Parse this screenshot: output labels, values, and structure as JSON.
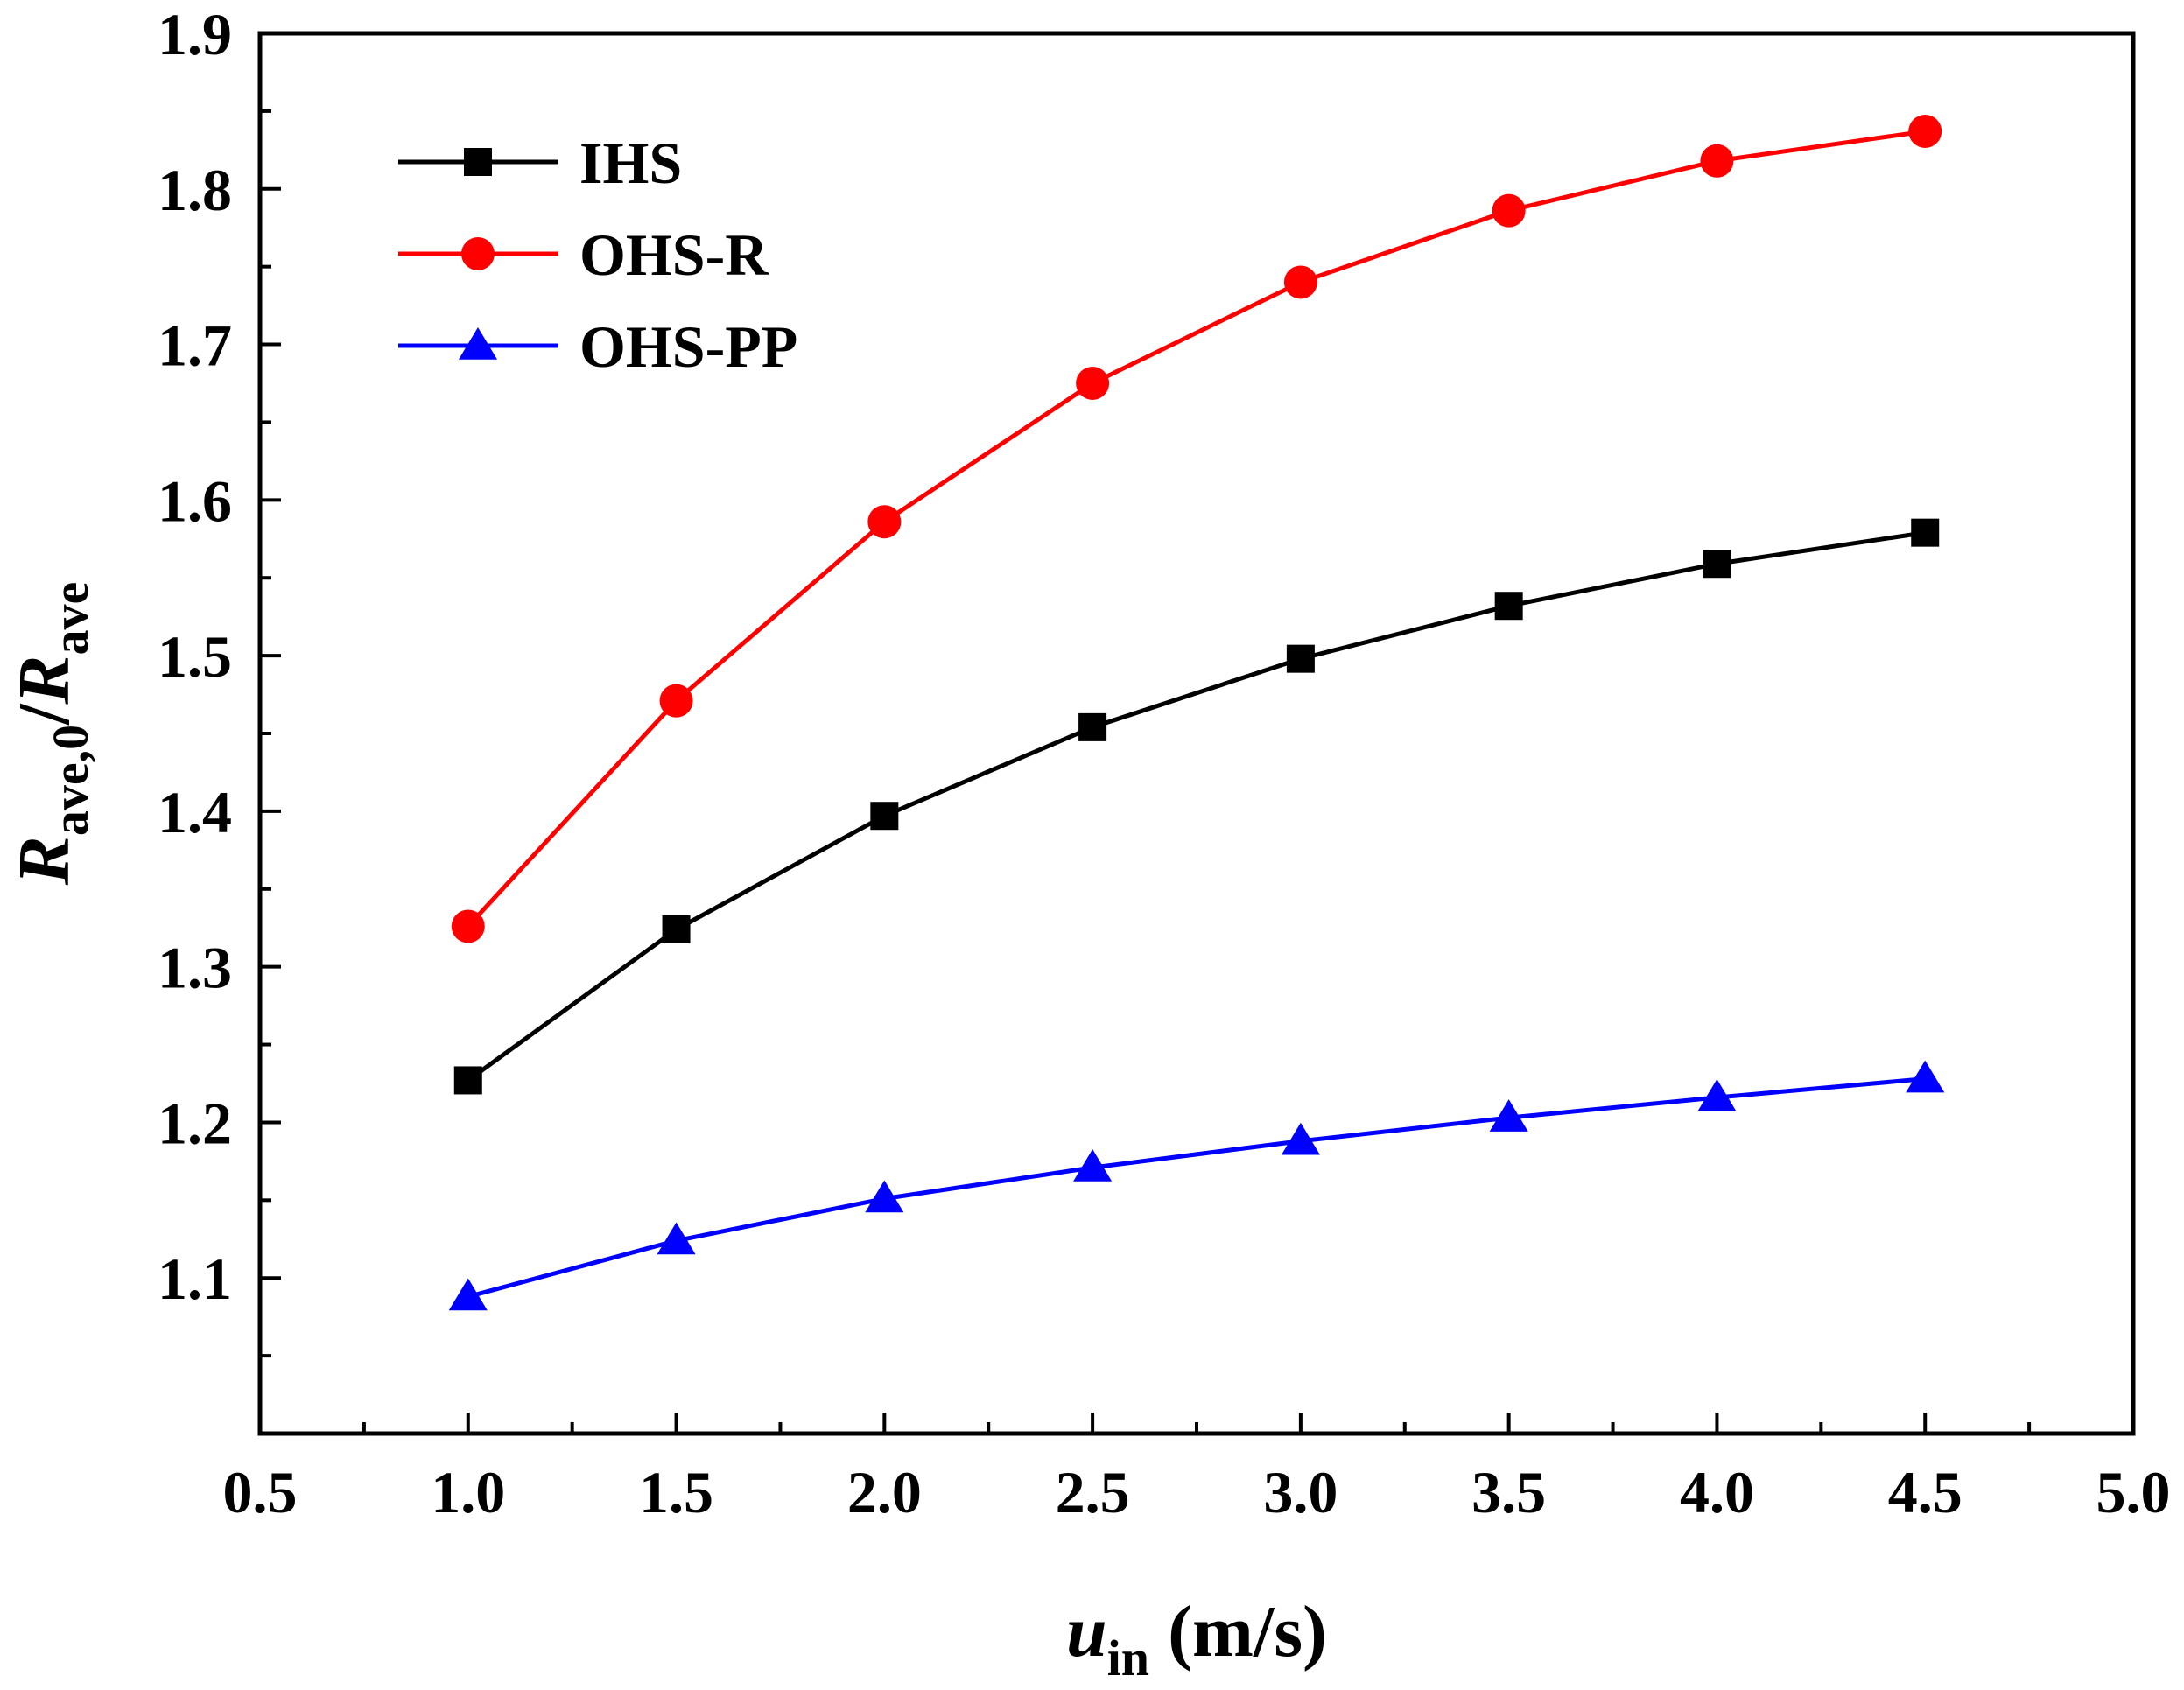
{
  "chart_data": {
    "type": "line",
    "title": "",
    "xlabel": {
      "var": "u",
      "sub": "in",
      "unit": " (m/s)"
    },
    "ylabel": {
      "num_var": "R",
      "num_sub": "ave,0",
      "slash": "/",
      "den_var": "R",
      "den_sub": "ave"
    },
    "xlim": [
      0.5,
      5.0
    ],
    "ylim": [
      1.0,
      1.9
    ],
    "x_ticks": [
      "0.5",
      "1.0",
      "1.5",
      "2.0",
      "2.5",
      "3.0",
      "3.5",
      "4.0",
      "4.5",
      "5.0"
    ],
    "y_ticks": [
      "1.1",
      "1.2",
      "1.3",
      "1.4",
      "1.5",
      "1.6",
      "1.7",
      "1.8",
      "1.9"
    ],
    "grid": false,
    "legend_position": "top-left",
    "x": [
      1.0,
      1.5,
      2.0,
      2.5,
      3.0,
      3.5,
      4.0,
      4.5
    ],
    "series": [
      {
        "name": "IHS",
        "color": "#000000",
        "marker": "square",
        "values": [
          1.227,
          1.324,
          1.397,
          1.454,
          1.498,
          1.532,
          1.559,
          1.579
        ]
      },
      {
        "name": "OHS-R",
        "color": "#ff0000",
        "marker": "circle",
        "values": [
          1.326,
          1.471,
          1.586,
          1.675,
          1.74,
          1.786,
          1.818,
          1.837
        ]
      },
      {
        "name": "OHS-PP",
        "color": "#0000ff",
        "marker": "triangle",
        "values": [
          1.088,
          1.124,
          1.151,
          1.171,
          1.188,
          1.203,
          1.216,
          1.228
        ]
      }
    ]
  }
}
